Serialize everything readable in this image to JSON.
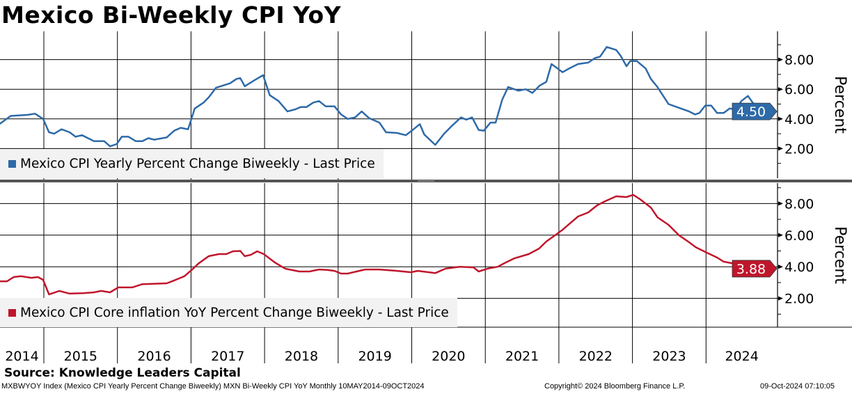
{
  "title": "Mexico Bi-Weekly CPI YoY",
  "source": "Source: Knowledge Leaders Capital",
  "footer": {
    "left": "MXBWYOY Index (Mexico CPI Yearly Percent Change Biweekly) MXN Bi-Weekly CPI YoY  Monthly 10MAY2014-09OCT2024",
    "center": "Copyright© 2024 Bloomberg Finance L.P.",
    "right": "09-Oct-2024 07:10:05"
  },
  "colors": {
    "headline": "#2e6aa8",
    "core": "#c0162c"
  },
  "chart_data": [
    {
      "type": "line",
      "legend": "Mexico CPI Yearly Percent Change Biweekly - Last Price",
      "ylabel": "Percent",
      "yticks": [
        "2.00",
        "4.00",
        "6.00",
        "8.00"
      ],
      "ylim": [
        0,
        9.5
      ],
      "last_value": "4.50",
      "color": "#2e6aa8",
      "points": [
        [
          2014.4,
          3.66
        ],
        [
          2014.55,
          4.2
        ],
        [
          2014.78,
          4.27
        ],
        [
          2014.88,
          4.35
        ],
        [
          2014.99,
          4.0
        ],
        [
          2015.07,
          3.1
        ],
        [
          2015.14,
          3.0
        ],
        [
          2015.24,
          3.3
        ],
        [
          2015.35,
          3.1
        ],
        [
          2015.43,
          2.8
        ],
        [
          2015.52,
          2.9
        ],
        [
          2015.68,
          2.5
        ],
        [
          2015.82,
          2.5
        ],
        [
          2015.9,
          2.15
        ],
        [
          2015.99,
          2.3
        ],
        [
          2016.06,
          2.8
        ],
        [
          2016.15,
          2.8
        ],
        [
          2016.25,
          2.5
        ],
        [
          2016.34,
          2.5
        ],
        [
          2016.42,
          2.7
        ],
        [
          2016.5,
          2.6
        ],
        [
          2016.67,
          2.75
        ],
        [
          2016.77,
          3.2
        ],
        [
          2016.86,
          3.4
        ],
        [
          2016.96,
          3.3
        ],
        [
          2017.05,
          4.7
        ],
        [
          2017.17,
          5.1
        ],
        [
          2017.24,
          5.45
        ],
        [
          2017.34,
          6.1
        ],
        [
          2017.53,
          6.4
        ],
        [
          2017.62,
          6.7
        ],
        [
          2017.67,
          6.75
        ],
        [
          2017.73,
          6.2
        ],
        [
          2017.86,
          6.6
        ],
        [
          2017.98,
          6.95
        ],
        [
          2018.07,
          5.6
        ],
        [
          2018.19,
          5.2
        ],
        [
          2018.31,
          4.5
        ],
        [
          2018.42,
          4.65
        ],
        [
          2018.49,
          4.8
        ],
        [
          2018.57,
          4.8
        ],
        [
          2018.66,
          5.1
        ],
        [
          2018.74,
          5.2
        ],
        [
          2018.83,
          4.85
        ],
        [
          2018.95,
          4.85
        ],
        [
          2019.04,
          4.3
        ],
        [
          2019.13,
          4.0
        ],
        [
          2019.23,
          4.1
        ],
        [
          2019.32,
          4.5
        ],
        [
          2019.42,
          4.05
        ],
        [
          2019.56,
          3.75
        ],
        [
          2019.65,
          3.1
        ],
        [
          2019.8,
          3.05
        ],
        [
          2019.92,
          2.9
        ],
        [
          2020.0,
          3.2
        ],
        [
          2020.11,
          3.65
        ],
        [
          2020.17,
          2.95
        ],
        [
          2020.32,
          2.25
        ],
        [
          2020.44,
          3.0
        ],
        [
          2020.55,
          3.55
        ],
        [
          2020.67,
          4.1
        ],
        [
          2020.74,
          3.95
        ],
        [
          2020.82,
          4.1
        ],
        [
          2020.91,
          3.25
        ],
        [
          2020.98,
          3.2
        ],
        [
          2021.07,
          3.75
        ],
        [
          2021.14,
          3.75
        ],
        [
          2021.23,
          5.3
        ],
        [
          2021.31,
          6.15
        ],
        [
          2021.45,
          5.9
        ],
        [
          2021.55,
          6.0
        ],
        [
          2021.64,
          5.75
        ],
        [
          2021.74,
          6.25
        ],
        [
          2021.83,
          6.5
        ],
        [
          2021.9,
          7.7
        ],
        [
          2022.05,
          7.15
        ],
        [
          2022.14,
          7.4
        ],
        [
          2022.26,
          7.7
        ],
        [
          2022.4,
          7.8
        ],
        [
          2022.49,
          8.1
        ],
        [
          2022.56,
          8.2
        ],
        [
          2022.65,
          8.85
        ],
        [
          2022.78,
          8.65
        ],
        [
          2022.84,
          8.25
        ],
        [
          2022.92,
          7.55
        ],
        [
          2022.97,
          7.9
        ],
        [
          2023.06,
          7.9
        ],
        [
          2023.18,
          7.4
        ],
        [
          2023.25,
          6.7
        ],
        [
          2023.34,
          6.15
        ],
        [
          2023.49,
          5.0
        ],
        [
          2023.63,
          4.75
        ],
        [
          2023.77,
          4.5
        ],
        [
          2023.85,
          4.3
        ],
        [
          2023.91,
          4.4
        ],
        [
          2023.99,
          4.9
        ],
        [
          2024.07,
          4.9
        ],
        [
          2024.15,
          4.4
        ],
        [
          2024.24,
          4.4
        ],
        [
          2024.32,
          4.7
        ],
        [
          2024.41,
          4.65
        ],
        [
          2024.48,
          5.2
        ],
        [
          2024.57,
          5.55
        ],
        [
          2024.67,
          4.85
        ],
        [
          2024.73,
          4.5
        ],
        [
          2024.81,
          4.5
        ]
      ]
    },
    {
      "type": "line",
      "legend": "Mexico CPI Core inflation YoY Percent Change Biweekly - Last Price",
      "ylabel": "Percent",
      "yticks": [
        "2.00",
        "4.00",
        "6.00",
        "8.00"
      ],
      "ylim": [
        0,
        9.2
      ],
      "last_value": "3.88",
      "color": "#c0162c",
      "points": [
        [
          2014.4,
          3.08
        ],
        [
          2014.5,
          3.08
        ],
        [
          2014.59,
          3.35
        ],
        [
          2014.69,
          3.4
        ],
        [
          2014.83,
          3.3
        ],
        [
          2014.92,
          3.35
        ],
        [
          2014.99,
          3.17
        ],
        [
          2015.07,
          2.25
        ],
        [
          2015.21,
          2.47
        ],
        [
          2015.35,
          2.3
        ],
        [
          2015.54,
          2.33
        ],
        [
          2015.68,
          2.38
        ],
        [
          2015.78,
          2.47
        ],
        [
          2015.9,
          2.38
        ],
        [
          2016.01,
          2.69
        ],
        [
          2016.2,
          2.69
        ],
        [
          2016.34,
          2.9
        ],
        [
          2016.67,
          2.95
        ],
        [
          2016.77,
          3.13
        ],
        [
          2016.91,
          3.4
        ],
        [
          2017.01,
          3.8
        ],
        [
          2017.1,
          4.2
        ],
        [
          2017.24,
          4.67
        ],
        [
          2017.38,
          4.8
        ],
        [
          2017.48,
          4.8
        ],
        [
          2017.57,
          4.98
        ],
        [
          2017.67,
          5.0
        ],
        [
          2017.73,
          4.67
        ],
        [
          2017.81,
          4.75
        ],
        [
          2017.9,
          4.98
        ],
        [
          2017.99,
          4.8
        ],
        [
          2018.14,
          4.27
        ],
        [
          2018.28,
          3.88
        ],
        [
          2018.47,
          3.7
        ],
        [
          2018.61,
          3.7
        ],
        [
          2018.74,
          3.83
        ],
        [
          2018.85,
          3.8
        ],
        [
          2018.95,
          3.74
        ],
        [
          2019.04,
          3.57
        ],
        [
          2019.13,
          3.57
        ],
        [
          2019.25,
          3.7
        ],
        [
          2019.37,
          3.83
        ],
        [
          2019.56,
          3.83
        ],
        [
          2019.8,
          3.74
        ],
        [
          2019.99,
          3.65
        ],
        [
          2020.08,
          3.74
        ],
        [
          2020.32,
          3.6
        ],
        [
          2020.46,
          3.88
        ],
        [
          2020.65,
          4.0
        ],
        [
          2020.84,
          3.96
        ],
        [
          2020.91,
          3.7
        ],
        [
          2021.03,
          3.88
        ],
        [
          2021.17,
          4.0
        ],
        [
          2021.26,
          4.23
        ],
        [
          2021.4,
          4.54
        ],
        [
          2021.59,
          4.8
        ],
        [
          2021.73,
          5.15
        ],
        [
          2021.83,
          5.6
        ],
        [
          2021.92,
          5.9
        ],
        [
          2022.05,
          6.34
        ],
        [
          2022.16,
          6.78
        ],
        [
          2022.26,
          7.18
        ],
        [
          2022.4,
          7.44
        ],
        [
          2022.52,
          7.89
        ],
        [
          2022.63,
          8.15
        ],
        [
          2022.78,
          8.46
        ],
        [
          2022.92,
          8.41
        ],
        [
          2023.01,
          8.55
        ],
        [
          2023.1,
          8.28
        ],
        [
          2023.25,
          7.75
        ],
        [
          2023.34,
          7.13
        ],
        [
          2023.49,
          6.65
        ],
        [
          2023.63,
          6.0
        ],
        [
          2023.77,
          5.55
        ],
        [
          2023.86,
          5.24
        ],
        [
          2024.01,
          4.89
        ],
        [
          2024.15,
          4.58
        ],
        [
          2024.24,
          4.32
        ],
        [
          2024.39,
          4.19
        ],
        [
          2024.53,
          4.1
        ],
        [
          2024.67,
          4.0
        ],
        [
          2024.81,
          3.88
        ]
      ]
    }
  ],
  "xaxis": {
    "labels": [
      "2014",
      "2015",
      "2016",
      "2017",
      "2018",
      "2019",
      "2020",
      "2021",
      "2022",
      "2023",
      "2024"
    ]
  }
}
